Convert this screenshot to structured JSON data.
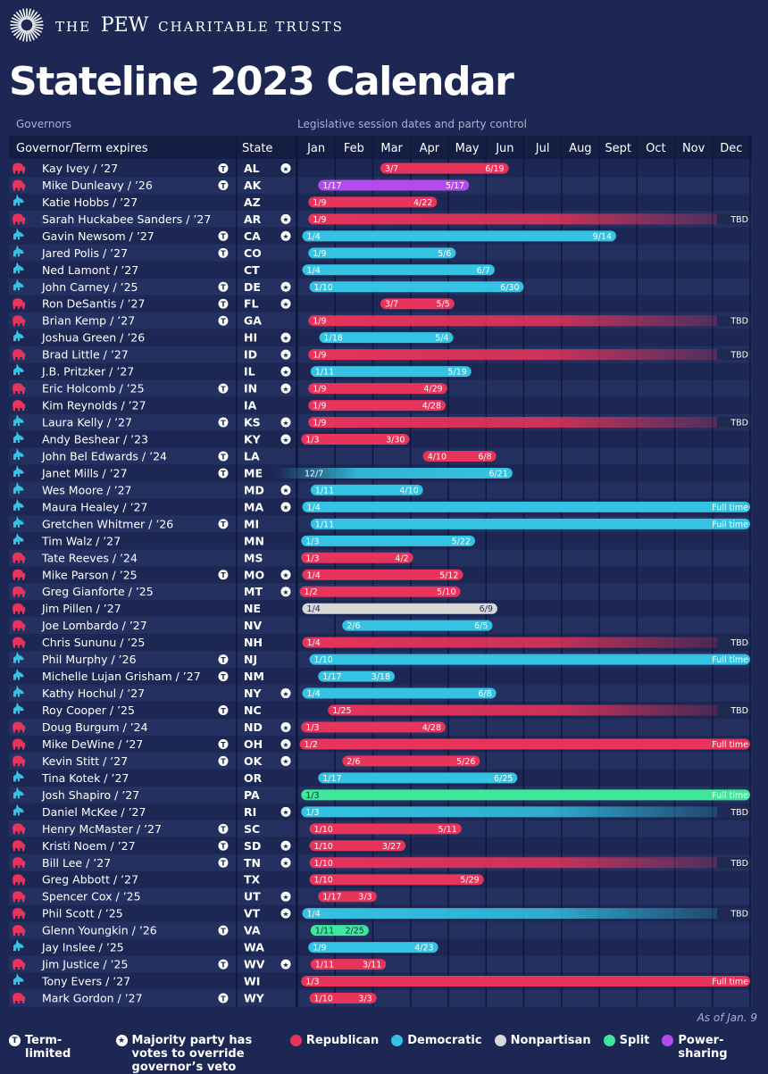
{
  "brand": {
    "pre": "THE",
    "name": "PEW",
    "post": "CHARITABLE TRUSTS"
  },
  "title": "Stateline 2023 Calendar",
  "subtitle_left": "Governors",
  "subtitle_right": "Legislative session dates and party control",
  "as_of": "As of Jan. 9",
  "headers": {
    "governor": "Governor/Term expires",
    "state": "State"
  },
  "colors": {
    "R": "#e8335a",
    "D": "#35c3e3",
    "N": "#d8d8d8",
    "S": "#40e79b",
    "P": "#b44bed",
    "bg": "#1c2754",
    "row_alt": "#233060",
    "header": "#141d42"
  },
  "legend": {
    "term_limited": "Term-limited",
    "override": "Majority party has votes to override governor’s veto",
    "republican": "Republican",
    "democratic": "Democratic",
    "nonpartisan": "Nonpartisan",
    "split": "Split",
    "power_sharing": "Power-sharing"
  },
  "chart_data": {
    "type": "gantt",
    "months": [
      "Jan",
      "Feb",
      "Mar",
      "Apr",
      "May",
      "Jun",
      "Jul",
      "Aug",
      "Sept",
      "Oct",
      "Nov",
      "Dec"
    ],
    "rows": [
      {
        "gov": "Kay Ivey / ’27",
        "gp": "R",
        "tl": true,
        "state": "AL",
        "ov": true,
        "party": "R",
        "start": "3/7",
        "end": "6/19",
        "s": 3.2,
        "e": 6.6
      },
      {
        "gov": "Mike Dunleavy / ’26",
        "gp": "R",
        "tl": true,
        "state": "AK",
        "ov": false,
        "party": "P",
        "start": "1/17",
        "end": "5/17",
        "s": 1.55,
        "e": 5.55
      },
      {
        "gov": "Katie Hobbs / ’27",
        "gp": "D",
        "tl": false,
        "state": "AZ",
        "ov": false,
        "party": "R",
        "start": "1/9",
        "end": "4/22",
        "s": 1.29,
        "e": 4.7
      },
      {
        "gov": "Sarah Huckabee Sanders / ’27",
        "gp": "R",
        "tl": false,
        "state": "AR",
        "ov": true,
        "party": "R",
        "start": "1/9",
        "end": "TBD",
        "s": 1.29,
        "e": 13,
        "fade": true
      },
      {
        "gov": "Gavin Newsom / ’27",
        "gp": "D",
        "tl": true,
        "state": "CA",
        "ov": true,
        "party": "D",
        "start": "1/4",
        "end": "9/14",
        "s": 1.13,
        "e": 9.45
      },
      {
        "gov": "Jared Polis / ’27",
        "gp": "D",
        "tl": true,
        "state": "CO",
        "ov": false,
        "party": "D",
        "start": "1/9",
        "end": "5/6",
        "s": 1.29,
        "e": 5.2
      },
      {
        "gov": "Ned Lamont / ’27",
        "gp": "D",
        "tl": false,
        "state": "CT",
        "ov": false,
        "party": "D",
        "start": "1/4",
        "end": "6/7",
        "s": 1.13,
        "e": 6.23
      },
      {
        "gov": "John Carney / ’25",
        "gp": "D",
        "tl": true,
        "state": "DE",
        "ov": true,
        "party": "D",
        "start": "1/10",
        "end": "6/30",
        "s": 1.32,
        "e": 7.0
      },
      {
        "gov": "Ron DeSantis / ’27",
        "gp": "R",
        "tl": true,
        "state": "FL",
        "ov": true,
        "party": "R",
        "start": "3/7",
        "end": "5/5",
        "s": 3.2,
        "e": 5.16
      },
      {
        "gov": "Brian Kemp / ’27",
        "gp": "R",
        "tl": true,
        "state": "GA",
        "ov": false,
        "party": "R",
        "start": "1/9",
        "end": "TBD",
        "s": 1.29,
        "e": 13,
        "fade": true
      },
      {
        "gov": "Joshua Green / ’26",
        "gp": "D",
        "tl": false,
        "state": "HI",
        "ov": true,
        "party": "D",
        "start": "1/18",
        "end": "5/4",
        "s": 1.58,
        "e": 5.13
      },
      {
        "gov": "Brad Little / ’27",
        "gp": "R",
        "tl": false,
        "state": "ID",
        "ov": true,
        "party": "R",
        "start": "1/9",
        "end": "TBD",
        "s": 1.29,
        "e": 13,
        "fade": true
      },
      {
        "gov": "J.B. Pritzker / ’27",
        "gp": "D",
        "tl": false,
        "state": "IL",
        "ov": true,
        "party": "D",
        "start": "1/11",
        "end": "5/19",
        "s": 1.35,
        "e": 5.61
      },
      {
        "gov": "Eric Holcomb / ’25",
        "gp": "R",
        "tl": true,
        "state": "IN",
        "ov": true,
        "party": "R",
        "start": "1/9",
        "end": "4/29",
        "s": 1.29,
        "e": 4.97
      },
      {
        "gov": "Kim Reynolds / ’27",
        "gp": "R",
        "tl": false,
        "state": "IA",
        "ov": false,
        "party": "R",
        "start": "1/9",
        "end": "4/28",
        "s": 1.29,
        "e": 4.93
      },
      {
        "gov": "Laura Kelly / ’27",
        "gp": "D",
        "tl": true,
        "state": "KS",
        "ov": true,
        "party": "R",
        "start": "1/9",
        "end": "TBD",
        "s": 1.29,
        "e": 13,
        "fade": true
      },
      {
        "gov": "Andy Beshear / ’23",
        "gp": "D",
        "tl": false,
        "state": "KY",
        "ov": true,
        "party": "R",
        "start": "1/3",
        "end": "3/30",
        "s": 1.1,
        "e": 3.97
      },
      {
        "gov": "John Bel Edwards / ’24",
        "gp": "D",
        "tl": true,
        "state": "LA",
        "ov": false,
        "party": "R",
        "start": "4/10",
        "end": "6/8",
        "s": 4.33,
        "e": 6.27
      },
      {
        "gov": "Janet Mills / ’27",
        "gp": "D",
        "tl": true,
        "state": "ME",
        "ov": false,
        "party": "D",
        "start": "12/7",
        "end": "6/21",
        "s": 0.4,
        "e": 6.7,
        "fadeStart": true
      },
      {
        "gov": "Wes Moore / ’27",
        "gp": "D",
        "tl": false,
        "state": "MD",
        "ov": true,
        "party": "D",
        "start": "1/11",
        "end": "4/10",
        "s": 1.35,
        "e": 4.33
      },
      {
        "gov": "Maura Healey / ’27",
        "gp": "D",
        "tl": false,
        "state": "MA",
        "ov": true,
        "party": "D",
        "start": "1/4",
        "end": "Full time",
        "s": 1.13,
        "e": 13
      },
      {
        "gov": "Gretchen Whitmer / ’26",
        "gp": "D",
        "tl": true,
        "state": "MI",
        "ov": false,
        "party": "D",
        "start": "1/11",
        "end": "Full time",
        "s": 1.35,
        "e": 13
      },
      {
        "gov": "Tim Walz / ’27",
        "gp": "D",
        "tl": false,
        "state": "MN",
        "ov": false,
        "party": "D",
        "start": "1/3",
        "end": "5/22",
        "s": 1.1,
        "e": 5.71
      },
      {
        "gov": "Tate Reeves / ’24",
        "gp": "R",
        "tl": false,
        "state": "MS",
        "ov": false,
        "party": "R",
        "start": "1/3",
        "end": "4/2",
        "s": 1.1,
        "e": 4.07
      },
      {
        "gov": "Mike Parson / ’25",
        "gp": "R",
        "tl": true,
        "state": "MO",
        "ov": true,
        "party": "R",
        "start": "1/4",
        "end": "5/12",
        "s": 1.13,
        "e": 5.39
      },
      {
        "gov": "Greg Gianforte / ’25",
        "gp": "R",
        "tl": false,
        "state": "MT",
        "ov": true,
        "party": "R",
        "start": "1/2",
        "end": "5/10",
        "s": 1.06,
        "e": 5.32
      },
      {
        "gov": "Jim Pillen / ’27",
        "gp": "R",
        "tl": false,
        "state": "NE",
        "ov": false,
        "party": "N",
        "start": "1/4",
        "end": "6/9",
        "s": 1.13,
        "e": 6.3
      },
      {
        "gov": "Joe Lombardo / ’27",
        "gp": "R",
        "tl": false,
        "state": "NV",
        "ov": false,
        "party": "D",
        "start": "2/6",
        "end": "6/5",
        "s": 2.19,
        "e": 6.17
      },
      {
        "gov": "Chris Sununu / ’25",
        "gp": "R",
        "tl": false,
        "state": "NH",
        "ov": false,
        "party": "R",
        "start": "1/4",
        "end": "TBD",
        "s": 1.13,
        "e": 13,
        "fade": true
      },
      {
        "gov": "Phil Murphy / ’26",
        "gp": "D",
        "tl": true,
        "state": "NJ",
        "ov": false,
        "party": "D",
        "start": "1/10",
        "end": "Full time",
        "s": 1.32,
        "e": 13
      },
      {
        "gov": "Michelle Lujan Grisham / ’27",
        "gp": "D",
        "tl": true,
        "state": "NM",
        "ov": false,
        "party": "D",
        "start": "1/17",
        "end": "3/18",
        "s": 1.55,
        "e": 3.58
      },
      {
        "gov": "Kathy Hochul / ’27",
        "gp": "D",
        "tl": false,
        "state": "NY",
        "ov": true,
        "party": "D",
        "start": "1/4",
        "end": "6/8",
        "s": 1.13,
        "e": 6.27
      },
      {
        "gov": "Roy Cooper / ’25",
        "gp": "D",
        "tl": true,
        "state": "NC",
        "ov": false,
        "party": "R",
        "start": "1/25",
        "end": "TBD",
        "s": 1.81,
        "e": 13,
        "fade": true
      },
      {
        "gov": "Doug Burgum / ’24",
        "gp": "R",
        "tl": false,
        "state": "ND",
        "ov": true,
        "party": "R",
        "start": "1/3",
        "end": "4/28",
        "s": 1.1,
        "e": 4.93
      },
      {
        "gov": "Mike DeWine / ’27",
        "gp": "R",
        "tl": true,
        "state": "OH",
        "ov": true,
        "party": "R",
        "start": "1/2",
        "end": "Full time",
        "s": 1.06,
        "e": 13
      },
      {
        "gov": "Kevin Stitt / ’27",
        "gp": "R",
        "tl": true,
        "state": "OK",
        "ov": true,
        "party": "R",
        "start": "2/6",
        "end": "5/26",
        "s": 2.19,
        "e": 5.84
      },
      {
        "gov": "Tina Kotek / ’27",
        "gp": "D",
        "tl": false,
        "state": "OR",
        "ov": false,
        "party": "D",
        "start": "1/17",
        "end": "6/25",
        "s": 1.55,
        "e": 6.83
      },
      {
        "gov": "Josh Shapiro / ’27",
        "gp": "D",
        "tl": false,
        "state": "PA",
        "ov": false,
        "party": "S",
        "start": "1/3",
        "end": "Full time",
        "s": 1.1,
        "e": 13
      },
      {
        "gov": "Daniel McKee / ’27",
        "gp": "D",
        "tl": false,
        "state": "RI",
        "ov": true,
        "party": "D",
        "start": "1/3",
        "end": "TBD",
        "s": 1.1,
        "e": 13,
        "fade": true
      },
      {
        "gov": "Henry McMaster / ’27",
        "gp": "R",
        "tl": true,
        "state": "SC",
        "ov": false,
        "party": "R",
        "start": "1/10",
        "end": "5/11",
        "s": 1.32,
        "e": 5.35
      },
      {
        "gov": "Kristi Noem / ’27",
        "gp": "R",
        "tl": true,
        "state": "SD",
        "ov": true,
        "party": "R",
        "start": "1/10",
        "end": "3/27",
        "s": 1.32,
        "e": 3.87
      },
      {
        "gov": "Bill Lee / ’27",
        "gp": "R",
        "tl": true,
        "state": "TN",
        "ov": true,
        "party": "R",
        "start": "1/10",
        "end": "TBD",
        "s": 1.32,
        "e": 13,
        "fade": true
      },
      {
        "gov": "Greg Abbott / ’27",
        "gp": "R",
        "tl": false,
        "state": "TX",
        "ov": false,
        "party": "R",
        "start": "1/10",
        "end": "5/29",
        "s": 1.32,
        "e": 5.94
      },
      {
        "gov": "Spencer Cox / ’25",
        "gp": "R",
        "tl": false,
        "state": "UT",
        "ov": true,
        "party": "R",
        "start": "1/17",
        "end": "3/3",
        "s": 1.55,
        "e": 3.1
      },
      {
        "gov": "Phil Scott / ’25",
        "gp": "R",
        "tl": false,
        "state": "VT",
        "ov": true,
        "party": "D",
        "start": "1/4",
        "end": "TBD",
        "s": 1.13,
        "e": 13,
        "fade": true
      },
      {
        "gov": "Glenn Youngkin / ’26",
        "gp": "R",
        "tl": true,
        "state": "VA",
        "ov": false,
        "party": "S",
        "start": "1/11",
        "end": "2/25",
        "s": 1.35,
        "e": 2.89
      },
      {
        "gov": "Jay Inslee / ’25",
        "gp": "D",
        "tl": false,
        "state": "WA",
        "ov": false,
        "party": "D",
        "start": "1/9",
        "end": "4/23",
        "s": 1.29,
        "e": 4.73
      },
      {
        "gov": "Jim Justice / ’25",
        "gp": "R",
        "tl": true,
        "state": "WV",
        "ov": true,
        "party": "R",
        "start": "1/11",
        "end": "3/11",
        "s": 1.35,
        "e": 3.35
      },
      {
        "gov": "Tony Evers / ’27",
        "gp": "D",
        "tl": false,
        "state": "WI",
        "ov": false,
        "party": "R",
        "start": "1/3",
        "end": "Full time",
        "s": 1.1,
        "e": 13
      },
      {
        "gov": "Mark Gordon / ’27",
        "gp": "R",
        "tl": true,
        "state": "WY",
        "ov": false,
        "party": "R",
        "start": "1/10",
        "end": "3/3",
        "s": 1.32,
        "e": 3.1
      }
    ]
  }
}
